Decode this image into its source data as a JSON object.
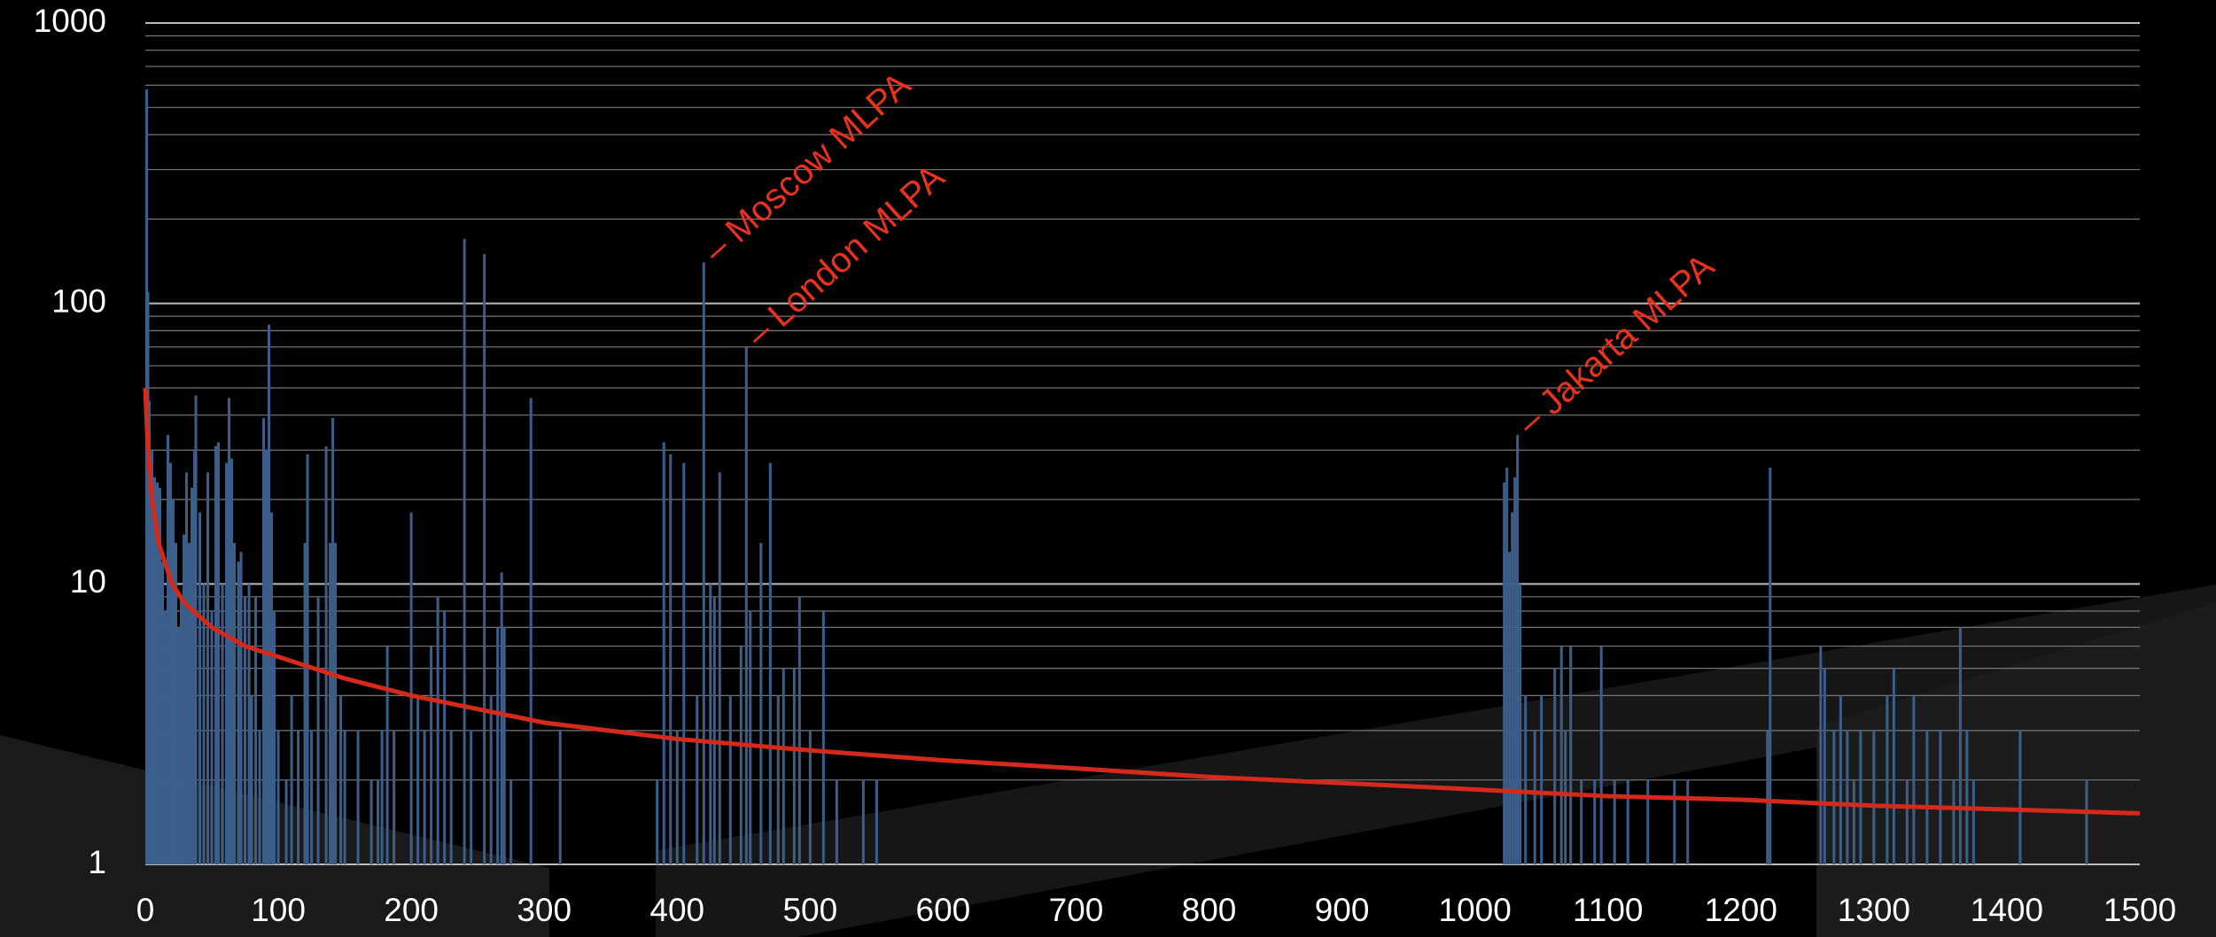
{
  "chart_data": {
    "type": "bar",
    "log_y": true,
    "grid": true,
    "xlim": [
      0,
      1500
    ],
    "xticks": [
      0,
      100,
      200,
      300,
      400,
      500,
      600,
      700,
      800,
      900,
      1000,
      1100,
      1200,
      1300,
      1400,
      1500
    ],
    "ylim": [
      1,
      1000
    ],
    "yticks": [
      1,
      10,
      100,
      1000
    ],
    "yminor": [
      2,
      3,
      4,
      5,
      6,
      7,
      8,
      9,
      20,
      30,
      40,
      50,
      60,
      70,
      80,
      90,
      200,
      300,
      400,
      500,
      600,
      700,
      800,
      900
    ],
    "bars": {
      "color": "#3b5f8a",
      "x": [
        1,
        2,
        3,
        5,
        7,
        9,
        11,
        13,
        15,
        17,
        19,
        21,
        23,
        25,
        27,
        29,
        31,
        33,
        35,
        37,
        38,
        41,
        44,
        47,
        50,
        53,
        55,
        58,
        61,
        63,
        65,
        67,
        70,
        72,
        75,
        78,
        80,
        83,
        86,
        89,
        91,
        93,
        95,
        97,
        100,
        106,
        110,
        115,
        120,
        122,
        125,
        130,
        136,
        139,
        141,
        143,
        147,
        150,
        160,
        170,
        175,
        178,
        182,
        187,
        200,
        205,
        210,
        215,
        220,
        225,
        230,
        240,
        245,
        255,
        260,
        265,
        268,
        270,
        275,
        290,
        312,
        385,
        390,
        395,
        400,
        405,
        415,
        420,
        425,
        428,
        432,
        440,
        448,
        452,
        455,
        463,
        470,
        476,
        480,
        488,
        492,
        500,
        510,
        520,
        540,
        550,
        1022,
        1024,
        1026,
        1028,
        1030,
        1032,
        1034,
        1038,
        1045,
        1050,
        1060,
        1065,
        1068,
        1072,
        1080,
        1090,
        1095,
        1105,
        1115,
        1130,
        1150,
        1160,
        1220,
        1222,
        1260,
        1263,
        1270,
        1275,
        1280,
        1285,
        1290,
        1300,
        1310,
        1315,
        1325,
        1330,
        1340,
        1350,
        1360,
        1365,
        1370,
        1375,
        1410,
        1460
      ],
      "values": [
        580,
        110,
        45,
        30,
        24,
        23,
        22,
        12,
        8,
        34,
        27,
        20,
        14,
        7,
        9,
        15,
        25,
        14,
        22,
        30,
        47,
        18,
        10,
        25,
        8,
        31,
        32,
        10,
        27,
        46,
        28,
        14,
        12,
        13,
        9,
        10,
        4,
        9,
        3,
        39,
        30,
        84,
        18,
        8,
        3,
        2,
        4,
        3,
        14,
        29,
        3,
        9,
        31,
        14,
        39,
        14,
        4,
        3,
        3,
        2,
        2,
        3,
        6,
        3,
        18,
        4,
        3,
        6,
        9,
        8,
        3,
        170,
        3,
        150,
        4,
        7,
        11,
        7,
        2,
        46,
        3,
        2,
        32,
        29,
        3,
        27,
        4,
        140,
        10,
        9,
        25,
        4,
        6,
        70,
        8,
        14,
        27,
        4,
        5,
        5,
        9,
        3,
        8,
        2,
        2,
        2,
        23,
        26,
        13,
        18,
        24,
        34,
        10,
        4,
        3,
        4,
        5,
        6,
        3,
        6,
        2,
        2,
        6,
        2,
        2,
        2,
        2,
        2,
        3,
        26,
        6,
        5,
        3,
        4,
        3,
        2,
        3,
        3,
        4,
        5,
        2,
        4,
        3,
        3,
        2,
        7,
        3,
        2,
        3,
        2
      ]
    },
    "trend": {
      "color": "#d42a1c",
      "x": [
        0,
        2,
        5,
        10,
        20,
        30,
        50,
        75,
        100,
        150,
        200,
        300,
        400,
        500,
        600,
        700,
        800,
        900,
        1000,
        1100,
        1200,
        1300,
        1400,
        1500
      ],
      "values": [
        50,
        30,
        20,
        14,
        10,
        8.5,
        7,
        6,
        5.5,
        4.6,
        4,
        3.2,
        2.8,
        2.55,
        2.35,
        2.2,
        2.05,
        1.95,
        1.85,
        1.75,
        1.7,
        1.62,
        1.57,
        1.52
      ]
    },
    "annotations": [
      {
        "text": "– Moscow MLPA",
        "x": 420,
        "y": 140
      },
      {
        "text": "– London MLPA",
        "x": 452,
        "y": 70
      },
      {
        "text": "– Jakarta MLPA",
        "x": 1032,
        "y": 34
      }
    ]
  }
}
